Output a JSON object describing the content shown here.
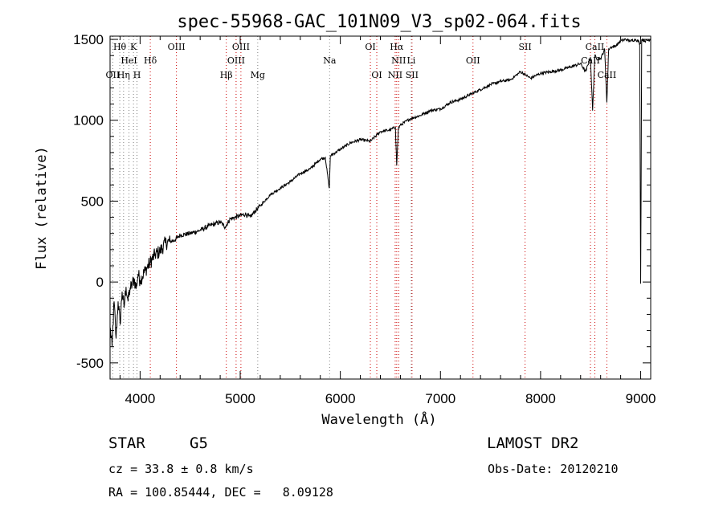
{
  "chart_data": {
    "type": "line",
    "title": "spec-55968-GAC_101N09_V3_sp02-064.fits",
    "xlabel": "Wavelength (Å)",
    "ylabel": "Flux (relative)",
    "xlim": [
      3700,
      9100
    ],
    "ylim": [
      -600,
      1520
    ],
    "x_ticks": [
      4000,
      5000,
      6000,
      7000,
      8000,
      9000
    ],
    "y_ticks": [
      -500,
      0,
      500,
      1000,
      1500
    ],
    "grid": false,
    "series": [
      {
        "x": [
          3700,
          3720,
          3740,
          3760,
          3780,
          3800,
          3820,
          3840,
          3860,
          3880,
          3900,
          3920,
          3940,
          3960,
          3980,
          4000,
          4050,
          4100,
          4150,
          4200,
          4250,
          4300,
          4350,
          4400,
          4500,
          4600,
          4700,
          4800,
          4850,
          4900,
          4950,
          5000,
          5050,
          5100,
          5150,
          5200,
          5300,
          5400,
          5500,
          5600,
          5700,
          5800,
          5850,
          5890,
          5900,
          6000,
          6100,
          6200,
          6300,
          6400,
          6500,
          6550,
          6563,
          6580,
          6600,
          6700,
          6800,
          6900,
          7000,
          7100,
          7200,
          7300,
          7400,
          7500,
          7600,
          7700,
          7800,
          7850,
          7900,
          8000,
          8100,
          8200,
          8300,
          8400,
          8450,
          8498,
          8520,
          8542,
          8560,
          8600,
          8640,
          8662,
          8680,
          8700,
          8750,
          8800,
          8850,
          8900,
          8950,
          8990,
          9000,
          9010,
          9050,
          9100
        ],
        "y": [
          -280,
          -400,
          -120,
          -350,
          -120,
          -260,
          -60,
          -160,
          -30,
          -120,
          -40,
          -20,
          20,
          -40,
          50,
          10,
          70,
          120,
          170,
          190,
          240,
          250,
          260,
          290,
          300,
          320,
          350,
          370,
          340,
          390,
          400,
          410,
          420,
          400,
          440,
          470,
          540,
          580,
          620,
          670,
          700,
          760,
          770,
          580,
          780,
          820,
          860,
          880,
          870,
          930,
          940,
          960,
          720,
          950,
          970,
          1010,
          1030,
          1060,
          1070,
          1110,
          1130,
          1160,
          1190,
          1220,
          1240,
          1250,
          1300,
          1280,
          1260,
          1290,
          1300,
          1310,
          1330,
          1350,
          1300,
          1390,
          1060,
          1400,
          1380,
          1380,
          1440,
          1110,
          1440,
          1450,
          1460,
          1490,
          1500,
          1490,
          1500,
          1480,
          -10,
          1500,
          1490,
          1500
        ]
      }
    ],
    "lines": [
      {
        "name": "Hθ",
        "x": 3797,
        "color": "#000000",
        "row": 1
      },
      {
        "name": "K",
        "x": 3934,
        "color": "#000000",
        "row": 1
      },
      {
        "name": "HeI",
        "x": 3889,
        "color": "#000000",
        "row": 2
      },
      {
        "name": "Hδ",
        "x": 4102,
        "color": "#000000",
        "row": 2
      },
      {
        "name": "OII",
        "x": 3727,
        "color": "#000000",
        "row": 3
      },
      {
        "name": "Hη",
        "x": 3835,
        "color": "#000000",
        "row": 3
      },
      {
        "name": "H",
        "x": 3969,
        "color": "#000000",
        "row": 3
      },
      {
        "name": "OIII",
        "x": 4363,
        "color": "#000000",
        "row": 1
      },
      {
        "name": "OIII",
        "x": 5007,
        "color": "#000000",
        "row": 1
      },
      {
        "name": "OIII",
        "x": 4959,
        "color": "#000000",
        "row": 2
      },
      {
        "name": "Hβ",
        "x": 4861,
        "color": "#000000",
        "row": 3
      },
      {
        "name": "Mg",
        "x": 5175,
        "color": "#000000",
        "row": 3
      },
      {
        "name": "Na",
        "x": 5893,
        "color": "#000000",
        "row": 2
      },
      {
        "name": "OI",
        "x": 6300,
        "color": "#000000",
        "row": 1
      },
      {
        "name": "OI",
        "x": 6364,
        "color": "#000000",
        "row": 3
      },
      {
        "name": "Hα",
        "x": 6563,
        "color": "#000000",
        "row": 1
      },
      {
        "name": "NII",
        "x": 6583,
        "color": "#000000",
        "row": 2
      },
      {
        "name": "Li",
        "x": 6708,
        "color": "#000000",
        "row": 2
      },
      {
        "name": "NII",
        "x": 6548,
        "color": "#000000",
        "row": 3
      },
      {
        "name": "SII",
        "x": 6716,
        "color": "#000000",
        "row": 3
      },
      {
        "name": "OII",
        "x": 7325,
        "color": "#000000",
        "row": 2
      },
      {
        "name": "SII",
        "x": 7845,
        "color": "#000000",
        "row": 1
      },
      {
        "name": "CaII",
        "x": 8542,
        "color": "#000000",
        "row": 1
      },
      {
        "name": "CaII",
        "x": 8498,
        "color": "#000000",
        "row": 2
      },
      {
        "name": "CaII",
        "x": 8662,
        "color": "#000000",
        "row": 3
      }
    ],
    "marker_lines": [
      {
        "x": 3727,
        "color": "#808080"
      },
      {
        "x": 3797,
        "color": "#808080"
      },
      {
        "x": 3835,
        "color": "#808080"
      },
      {
        "x": 3889,
        "color": "#808080"
      },
      {
        "x": 3934,
        "color": "#808080"
      },
      {
        "x": 3969,
        "color": "#808080"
      },
      {
        "x": 4102,
        "color": "#cc0000"
      },
      {
        "x": 4363,
        "color": "#cc0000"
      },
      {
        "x": 4861,
        "color": "#cc0000"
      },
      {
        "x": 4959,
        "color": "#cc0000"
      },
      {
        "x": 5007,
        "color": "#cc0000"
      },
      {
        "x": 5175,
        "color": "#808080"
      },
      {
        "x": 5893,
        "color": "#808080"
      },
      {
        "x": 6300,
        "color": "#cc0000"
      },
      {
        "x": 6364,
        "color": "#cc0000"
      },
      {
        "x": 6548,
        "color": "#cc0000"
      },
      {
        "x": 6563,
        "color": "#cc0000"
      },
      {
        "x": 6583,
        "color": "#cc0000"
      },
      {
        "x": 6708,
        "color": "#808080"
      },
      {
        "x": 6716,
        "color": "#cc0000"
      },
      {
        "x": 7325,
        "color": "#cc0000"
      },
      {
        "x": 7845,
        "color": "#cc0000"
      },
      {
        "x": 8498,
        "color": "#cc0000"
      },
      {
        "x": 8542,
        "color": "#cc0000"
      },
      {
        "x": 8662,
        "color": "#cc0000"
      }
    ]
  },
  "info": {
    "class_label": "STAR",
    "subclass": "G5",
    "survey": "LAMOST DR2",
    "cz": "cz = 33.8 ± 0.8 km/s",
    "obs_date": "Obs-Date: 20120210",
    "coords": "RA = 100.85444, DEC =   8.09128"
  }
}
